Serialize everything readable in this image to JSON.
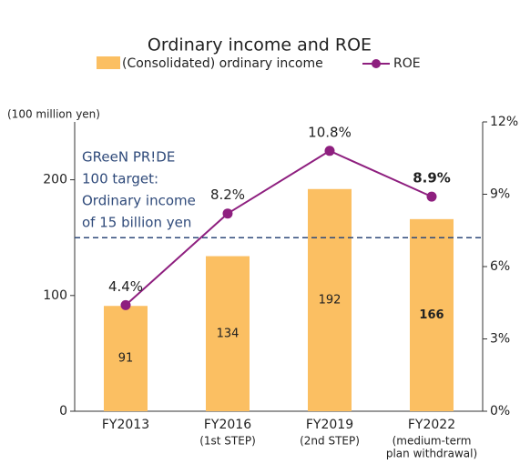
{
  "chart_data": {
    "type": "bar_line",
    "title": "Ordinary income and ROE",
    "y_label": "(100 million yen)",
    "categories": [
      "FY2013",
      "FY2016",
      "FY2019",
      "FY2022"
    ],
    "category_notes": [
      [],
      [
        "(1st STEP)"
      ],
      [
        "(2nd STEP)"
      ],
      [
        "(medium-term",
        "plan withdrawal)"
      ]
    ],
    "series": [
      {
        "name": "(Consolidated) ordinary income",
        "type": "bar",
        "color": "#fbbf62",
        "values": [
          91,
          134,
          192,
          166
        ]
      },
      {
        "name": "ROE",
        "type": "line",
        "axis": "y2",
        "color": "#8e1f7f",
        "values": [
          4.4,
          8.2,
          10.8,
          8.9
        ],
        "value_labels": [
          "4.4%",
          "8.2%",
          "10.8%",
          "8.9%"
        ]
      }
    ],
    "ylim": [
      0,
      250
    ],
    "yticks": [
      0,
      100,
      200
    ],
    "y2lim": [
      0,
      12
    ],
    "y2ticks": [
      {
        "value": 0,
        "label": "0%"
      },
      {
        "value": 3,
        "label": "3%"
      },
      {
        "value": 6,
        "label": "6%"
      },
      {
        "value": 9,
        "label": "9%"
      },
      {
        "value": 12,
        "label": "12%"
      }
    ],
    "reference_line": {
      "value": 150,
      "color": "#2f4a7a",
      "text": [
        "GReeN PR!DE",
        "100 target:",
        "Ordinary income",
        "of 15 billion yen"
      ]
    }
  }
}
